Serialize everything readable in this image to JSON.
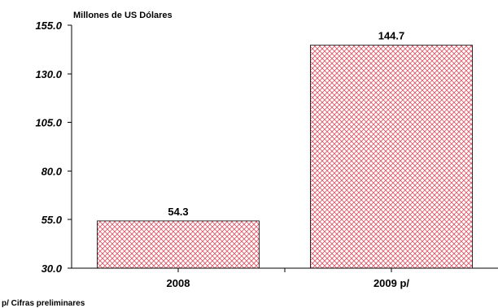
{
  "chart_data": {
    "type": "bar",
    "ylabel": "Millones de US Dólares",
    "categories": [
      "2008",
      "2009 p/"
    ],
    "values": [
      54.3,
      144.7
    ],
    "value_labels": [
      "54.3",
      "144.7"
    ],
    "ylim": [
      30.0,
      155.0
    ],
    "yticks": [
      "30.0",
      "55.0",
      "80.0",
      "105.0",
      "130.0",
      "155.0"
    ],
    "ytick_values": [
      30.0,
      55.0,
      80.0,
      105.0,
      130.0,
      155.0
    ],
    "grid": false,
    "legend": "none",
    "bar_fill_pattern": "crosshatch",
    "bar_color": "#e05060",
    "footnote": "p/ Cifras preliminares"
  }
}
